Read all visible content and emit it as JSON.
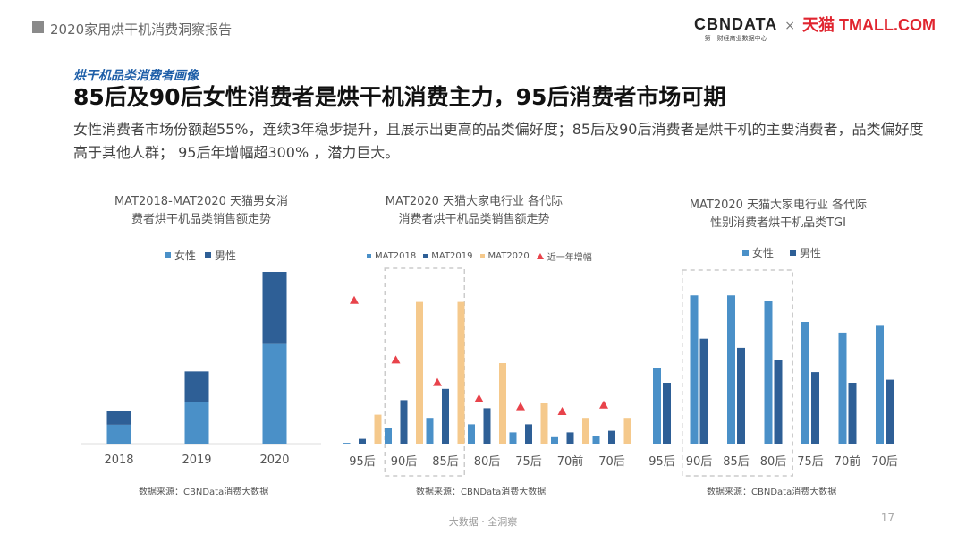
{
  "header": {
    "title": "2020家用烘干机消费洞察报告"
  },
  "logo": {
    "cbn": "CBNDATA",
    "cbn_sub": "第一财经商业数据中心",
    "times": "×",
    "tmall": "天猫 TMALL.COM"
  },
  "section_tag": "烘干机品类消费者画像",
  "main_title": "85后及90后女性消费者是烘干机消费主力，95后消费者市场可期",
  "summary": "女性消费者市场份额超55%，连续3年稳步提升，且展示出更高的品类偏好度；85后及90后消费者是烘干机的主要消费者，品类偏好度高于其他人群； 95后年增幅超300% ，潜力巨大。",
  "colors": {
    "female": "#4a90c8",
    "male": "#2e5f96",
    "mat2018": "#4a90c8",
    "mat2019": "#2e5f96",
    "mat2020": "#f5c98c",
    "growth": "#e8434b"
  },
  "chart_data": [
    {
      "type": "bar",
      "stacked": true,
      "title_line1": "MAT2018-MAT2020  天猫男女消",
      "title_line2": "费者烘干机品类销售额走势",
      "categories": [
        "2018",
        "2019",
        "2020"
      ],
      "series": [
        {
          "name": "女性",
          "values": [
            11,
            24,
            58
          ]
        },
        {
          "name": "男性",
          "values": [
            8,
            18,
            42
          ]
        }
      ],
      "legend_position": "top",
      "source": "数据来源：CBNData消费大数据"
    },
    {
      "type": "bar",
      "title_line1": "MAT2020 天猫大家电行业 各代际",
      "title_line2": "消费者烘干机品类销售额走势",
      "categories": [
        "95后",
        "90后",
        "85后",
        "80后",
        "75后",
        "70前",
        "70后"
      ],
      "series": [
        {
          "name": "MAT2018",
          "values": [
            0.5,
            10,
            16,
            12,
            7,
            4,
            5
          ]
        },
        {
          "name": "MAT2019",
          "values": [
            3,
            27,
            34,
            22,
            12,
            7,
            8
          ]
        },
        {
          "name": "MAT2020",
          "values": [
            18,
            88,
            88,
            50,
            25,
            16,
            16
          ]
        }
      ],
      "growth_series": {
        "name": "近一年增幅",
        "values": [
          89,
          52,
          38,
          28,
          23,
          20,
          24
        ]
      },
      "highlight": [
        "90后",
        "85后"
      ],
      "legend_position": "top",
      "source": "数据来源：CBNData消费大数据"
    },
    {
      "type": "bar",
      "title_line1": "MAT2020 天猫大家电行业 各代际",
      "title_line2": "性别消费者烘干机品类TGI",
      "categories": [
        "95后",
        "90后",
        "85后",
        "80后",
        "75后",
        "70前",
        "70后"
      ],
      "series": [
        {
          "name": "女性",
          "values": [
            100,
            195,
            195,
            188,
            160,
            146,
            156
          ]
        },
        {
          "name": "男性",
          "values": [
            80,
            138,
            126,
            110,
            94,
            80,
            84
          ]
        }
      ],
      "highlight": [
        "90后",
        "85后",
        "80后"
      ],
      "legend_position": "top",
      "source": "数据来源：CBNData消费大数据"
    }
  ],
  "footer": {
    "text": "大数据 · 全洞察",
    "page": "17"
  }
}
